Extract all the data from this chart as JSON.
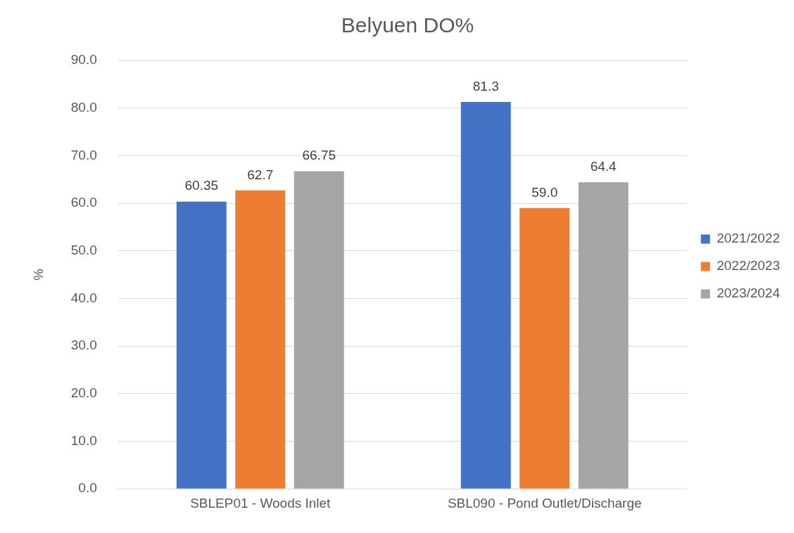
{
  "chart_data": {
    "type": "bar",
    "title": "Belyuen DO%",
    "ylabel": "%",
    "categories": [
      "SBLEP01 - Woods Inlet",
      "SBL090 - Pond Outlet/Discharge"
    ],
    "series": [
      {
        "name": "2021/2022",
        "color": "#4472c4",
        "values": [
          60.35,
          81.3
        ],
        "value_labels": [
          "60.35",
          "81.3"
        ]
      },
      {
        "name": "2022/2023",
        "color": "#ed7d31",
        "values": [
          62.7,
          59.0
        ],
        "value_labels": [
          "62.7",
          "59.0"
        ]
      },
      {
        "name": "2023/2024",
        "color": "#a5a5a5",
        "values": [
          66.75,
          64.4
        ],
        "value_labels": [
          "66.75",
          "64.4"
        ]
      }
    ],
    "ylim": [
      0,
      90
    ],
    "yticks": [
      {
        "value": 0,
        "label": "0.0"
      },
      {
        "value": 10,
        "label": "10.0"
      },
      {
        "value": 20,
        "label": "20.0"
      },
      {
        "value": 30,
        "label": "30.0"
      },
      {
        "value": 40,
        "label": "40.0"
      },
      {
        "value": 50,
        "label": "50.0"
      },
      {
        "value": 60,
        "label": "60.0"
      },
      {
        "value": 70,
        "label": "70.0"
      },
      {
        "value": 80,
        "label": "80.0"
      },
      {
        "value": 90,
        "label": "90.0"
      }
    ],
    "grid": "y",
    "legend": "right"
  }
}
